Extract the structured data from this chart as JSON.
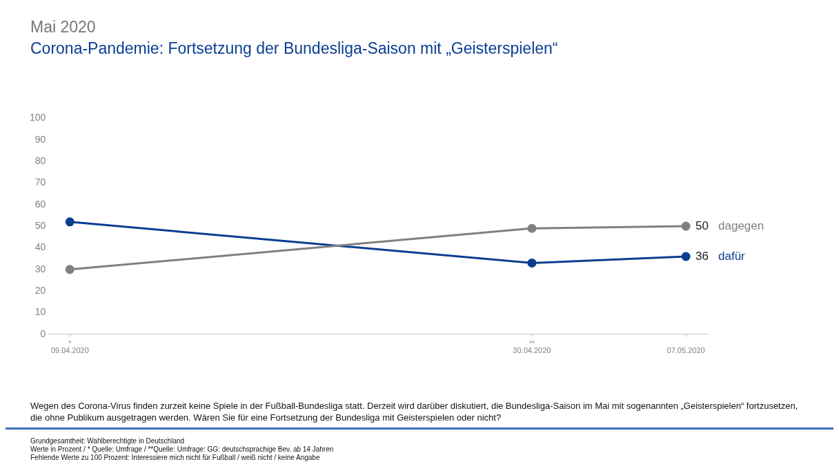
{
  "chart_data": {
    "type": "line",
    "title": "Mai 2020",
    "subtitle": "Corona-Pandemie: Fortsetzung der Bundesliga-Saison mit „Geisterspielen“",
    "x": [
      "2020-04-09",
      "2020-04-30",
      "2020-05-07"
    ],
    "series": [
      {
        "name": "dagegen",
        "color": "#808080",
        "values": [
          30,
          49,
          50
        ],
        "value_labels": [
          null,
          null,
          "50"
        ]
      },
      {
        "name": "dafür",
        "color": "#0a3d91",
        "values": [
          52,
          33,
          36
        ],
        "value_labels": [
          null,
          null,
          "36"
        ]
      }
    ],
    "xlim": [
      "2020-04-08",
      "2020-05-08"
    ],
    "xticks": [
      {
        "value": "2020-04-09",
        "label": "09.04.2020"
      },
      {
        "value": "2020-04-30",
        "label": "30.04.2020"
      },
      {
        "value": "2020-05-07",
        "label": "07.05.2020"
      }
    ],
    "ylim": [
      0,
      100
    ],
    "yticks": [
      0,
      10,
      20,
      30,
      40,
      50,
      60,
      70,
      80,
      90,
      100
    ],
    "grid": false,
    "legend": false,
    "marker": "circle",
    "line_style": "solid",
    "annotations": [
      "*",
      "**",
      "Wegen des Corona-Virus finden zurzeit keine Spiele in der Fußball-Bundesliga statt. Derzeit wird darüber diskutiert, die Bundesliga-Saison im Mai mit sogenannten „Geisterspielen“ fortzusetzen, die ohne Publikum ausgetragen werden. Wären Sie für eine Fortsetzung der Bundesliga mit Geisterspielen oder nicht?",
      "Grundgesamtheit: Wahlberechtigte in Deutschland",
      "Werte in Prozent / * Quelle: Umfrage / **Quelle: Umfrage: GG: deutschsprachige Bev. ab 14 Jahren",
      "Fehlende Werte zu 100 Prozent: Interessiere mich nicht für Fußball / weiß nicht / keine Angabe"
    ]
  }
}
